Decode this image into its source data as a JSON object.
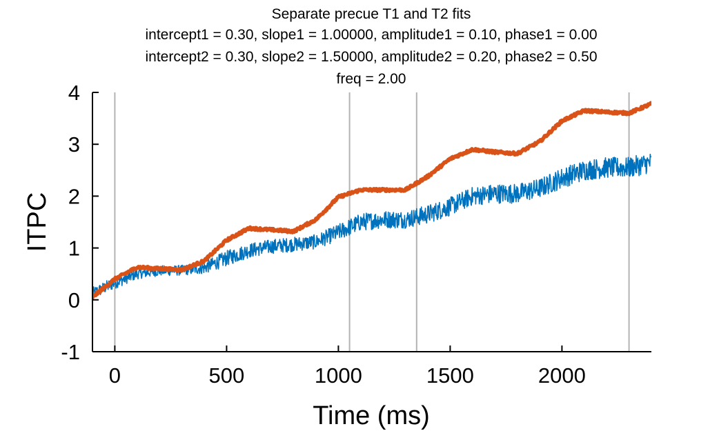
{
  "chart_data": {
    "type": "line",
    "title_lines": [
      "Separate precue T1 and T2 fits",
      "intercept1 = 0.30, slope1 = 1.00000, amplitude1 = 0.10, phase1 = 0.00",
      "intercept2 = 0.30, slope2 = 1.50000, amplitude2 = 0.20, phase2 = 0.50",
      "freq = 2.00"
    ],
    "xlabel": "Time (ms)",
    "ylabel": "ITPC",
    "xlim": [
      -100,
      2400
    ],
    "ylim": [
      -1,
      4
    ],
    "xticks": [
      0,
      500,
      1000,
      1500,
      2000
    ],
    "xtick_labels": [
      "0",
      "500",
      "1000",
      "1500",
      "2000"
    ],
    "yticks": [
      -1,
      0,
      1,
      2,
      3,
      4
    ],
    "ytick_labels": [
      "-1",
      "0",
      "1",
      "2",
      "3",
      "4"
    ],
    "vlines_x": [
      0,
      1050,
      1350,
      2300
    ],
    "vline_color": "#b3b3b3",
    "grid": false,
    "series": [
      {
        "color": "#0072bd",
        "style": "noisy band",
        "x": [
          -100,
          0,
          100,
          200,
          300,
          400,
          500,
          600,
          700,
          800,
          900,
          1000,
          1100,
          1200,
          1300,
          1400,
          1500,
          1600,
          1700,
          1800,
          1900,
          2000,
          2100,
          2200,
          2300,
          2400
        ],
        "y": [
          0.12,
          0.33,
          0.5,
          0.56,
          0.57,
          0.62,
          0.8,
          0.95,
          1.03,
          1.07,
          1.12,
          1.3,
          1.5,
          1.55,
          1.55,
          1.65,
          1.8,
          2.0,
          2.05,
          2.05,
          2.15,
          2.35,
          2.5,
          2.55,
          2.55,
          2.65
        ],
        "y_spread": [
          0.12,
          0.12,
          0.1,
          0.1,
          0.1,
          0.12,
          0.15,
          0.14,
          0.14,
          0.14,
          0.14,
          0.16,
          0.17,
          0.17,
          0.17,
          0.18,
          0.18,
          0.18,
          0.19,
          0.19,
          0.19,
          0.2,
          0.2,
          0.2,
          0.2,
          0.2
        ]
      },
      {
        "color": "#d95319",
        "style": "line",
        "x": [
          -100,
          0,
          100,
          200,
          300,
          400,
          500,
          600,
          700,
          800,
          900,
          1000,
          1100,
          1200,
          1300,
          1400,
          1500,
          1600,
          1700,
          1800,
          1900,
          2000,
          2100,
          2200,
          2300,
          2400
        ],
        "y": [
          0.05,
          0.4,
          0.63,
          0.6,
          0.58,
          0.75,
          1.15,
          1.38,
          1.35,
          1.32,
          1.55,
          1.98,
          2.12,
          2.12,
          2.12,
          2.38,
          2.72,
          2.9,
          2.85,
          2.82,
          3.05,
          3.45,
          3.65,
          3.62,
          3.6,
          3.78
        ]
      }
    ]
  }
}
